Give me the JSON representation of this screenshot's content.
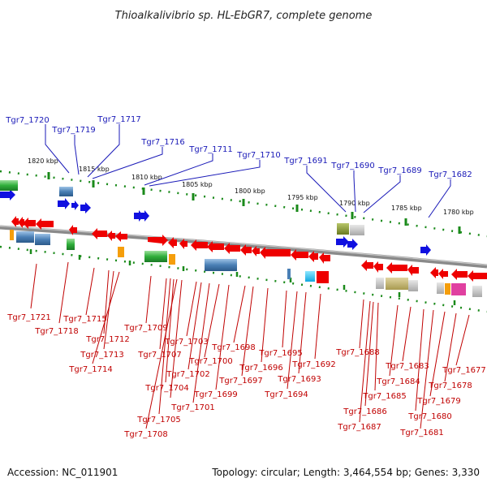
{
  "title": "Thioalkalivibrio sp. HL-EbGR7, complete genome",
  "footer": {
    "accession": "Accession: NC_011901",
    "summary": "Topology: circular; Length: 3,464,554 bp; Genes: 3,330"
  },
  "kbp_labels": [
    "1820 kbp",
    "1815 kbp",
    "1810 kbp",
    "1805 kbp",
    "1800 kbp",
    "1795 kbp",
    "1790 kbp",
    "1785 kbp",
    "1780 kbp"
  ],
  "top_labels": [
    "Tgr7_1720",
    "Tgr7_1719",
    "Tgr7_1717",
    "Tgr7_1716",
    "Tgr7_1711",
    "Tgr7_1710",
    "Tgr7_1691",
    "Tgr7_1690",
    "Tgr7_1689",
    "Tgr7_1682"
  ],
  "bottom_labels": [
    "Tgr7_1721",
    "Tgr7_1718",
    "Tgr7_1715",
    "Tgr7_1712",
    "Tgr7_1713",
    "Tgr7_1714",
    "Tgr7_1709",
    "Tgr7_1707",
    "Tgr7_1703",
    "Tgr7_1705",
    "Tgr7_1704",
    "Tgr7_1708",
    "Tgr7_1702",
    "Tgr7_1700",
    "Tgr7_1701",
    "Tgr7_1699",
    "Tgr7_1698",
    "Tgr7_1697",
    "Tgr7_1696",
    "Tgr7_1695",
    "Tgr7_1693",
    "Tgr7_1694",
    "Tgr7_1692",
    "Tgr7_1688",
    "Tgr7_1686",
    "Tgr7_1687",
    "Tgr7_1685",
    "Tgr7_1684",
    "Tgr7_1683",
    "Tgr7_1680",
    "Tgr7_1681",
    "Tgr7_1679",
    "Tgr7_1678",
    "Tgr7_1677"
  ],
  "colors": {
    "forward_gene": "#1010e0",
    "reverse_gene": "#ee0000",
    "backbone": "#8a8a8a",
    "kbp_tick": "#1a8a1a",
    "top_label": "#1a1ab8",
    "bottom_label": "#c00000"
  }
}
